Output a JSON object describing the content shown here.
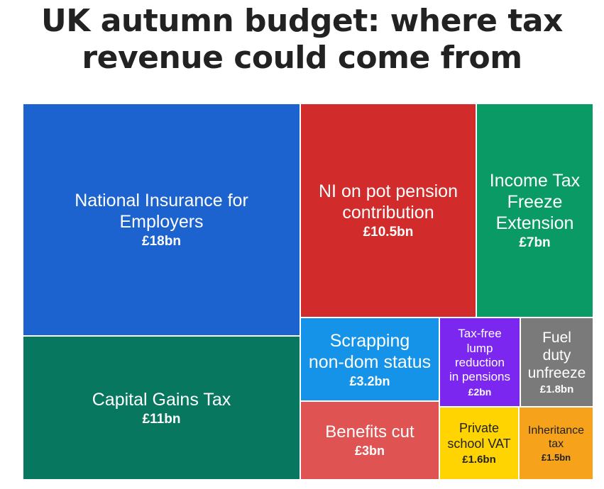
{
  "title_line1": "UK autumn budget: where tax",
  "title_line2": "revenue could come from",
  "chart_data": {
    "type": "treemap",
    "title": "UK autumn budget: where tax revenue could come from",
    "items": [
      {
        "label": "National Insurance for Employers",
        "value_label": "£18bn",
        "value": 18,
        "color": "#1c63cf",
        "text_color": "#ffffff"
      },
      {
        "label": "Capital Gains Tax",
        "value_label": "£11bn",
        "value": 11,
        "color": "#087760",
        "text_color": "#ffffff"
      },
      {
        "label": "NI on pot pension contribution",
        "value_label": "£10.5bn",
        "value": 10.5,
        "color": "#d12b2b",
        "text_color": "#ffffff"
      },
      {
        "label": "Income Tax Freeze Extension",
        "value_label": "£7bn",
        "value": 7,
        "color": "#0a9a66",
        "text_color": "#ffffff"
      },
      {
        "label": "Scrapping non-dom status",
        "value_label": "£3.2bn",
        "value": 3.2,
        "color": "#1593e8",
        "text_color": "#ffffff"
      },
      {
        "label": "Tax-free lump reduction in pensions",
        "value_label": "£2bn",
        "value": 2,
        "color": "#7b27f0",
        "text_color": "#ffffff"
      },
      {
        "label": "Fuel duty unfreeze",
        "value_label": "£1.8bn",
        "value": 1.8,
        "color": "#7a7a7a",
        "text_color": "#ffffff"
      },
      {
        "label": "Benefits cut",
        "value_label": "£3bn",
        "value": 3,
        "color": "#e05353",
        "text_color": "#ffffff"
      },
      {
        "label": "Private school VAT",
        "value_label": "£1.6bn",
        "value": 1.6,
        "color": "#ffd400",
        "text_color": "#222222"
      },
      {
        "label": "Inheritance tax",
        "value_label": "£1.5bn",
        "value": 1.5,
        "color": "#f7a21b",
        "text_color": "#222222"
      }
    ]
  }
}
